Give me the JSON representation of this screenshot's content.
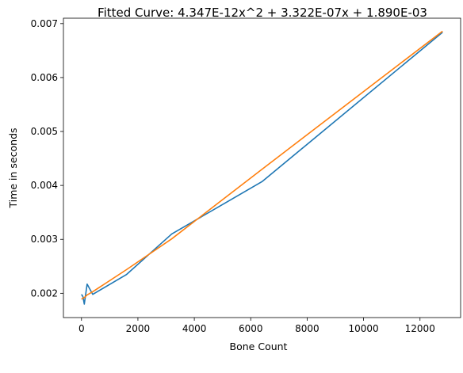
{
  "chart_data": {
    "type": "line",
    "title": "Fitted Curve: 4.347E-12x^2 + 3.322E-07x + 1.890E-03",
    "xlabel": "Bone Count",
    "ylabel": "Time in seconds",
    "xlim": [
      -640,
      13440
    ],
    "ylim": [
      0.00155,
      0.0071
    ],
    "xticks": [
      0,
      2000,
      4000,
      6000,
      8000,
      10000,
      12000
    ],
    "yticks": [
      0.002,
      0.003,
      0.004,
      0.005,
      0.006,
      0.007
    ],
    "grid": false,
    "legend": "none",
    "series": [
      {
        "color": "#1f77b4",
        "x": [
          0,
          50,
          100,
          200,
          400,
          1600,
          3200,
          6400,
          12800
        ],
        "y": [
          0.00198,
          0.00194,
          0.0018,
          0.00217,
          0.00198,
          0.00235,
          0.0031,
          0.00407,
          0.00684
        ]
      },
      {
        "color": "#ff7f0e",
        "x": [
          0,
          50,
          100,
          200,
          400,
          1600,
          3200,
          6400,
          12800
        ],
        "y": [
          0.00189,
          0.00191,
          0.00192,
          0.00197,
          0.00203,
          0.00244,
          0.00301,
          0.0043,
          0.00686
        ]
      }
    ]
  }
}
